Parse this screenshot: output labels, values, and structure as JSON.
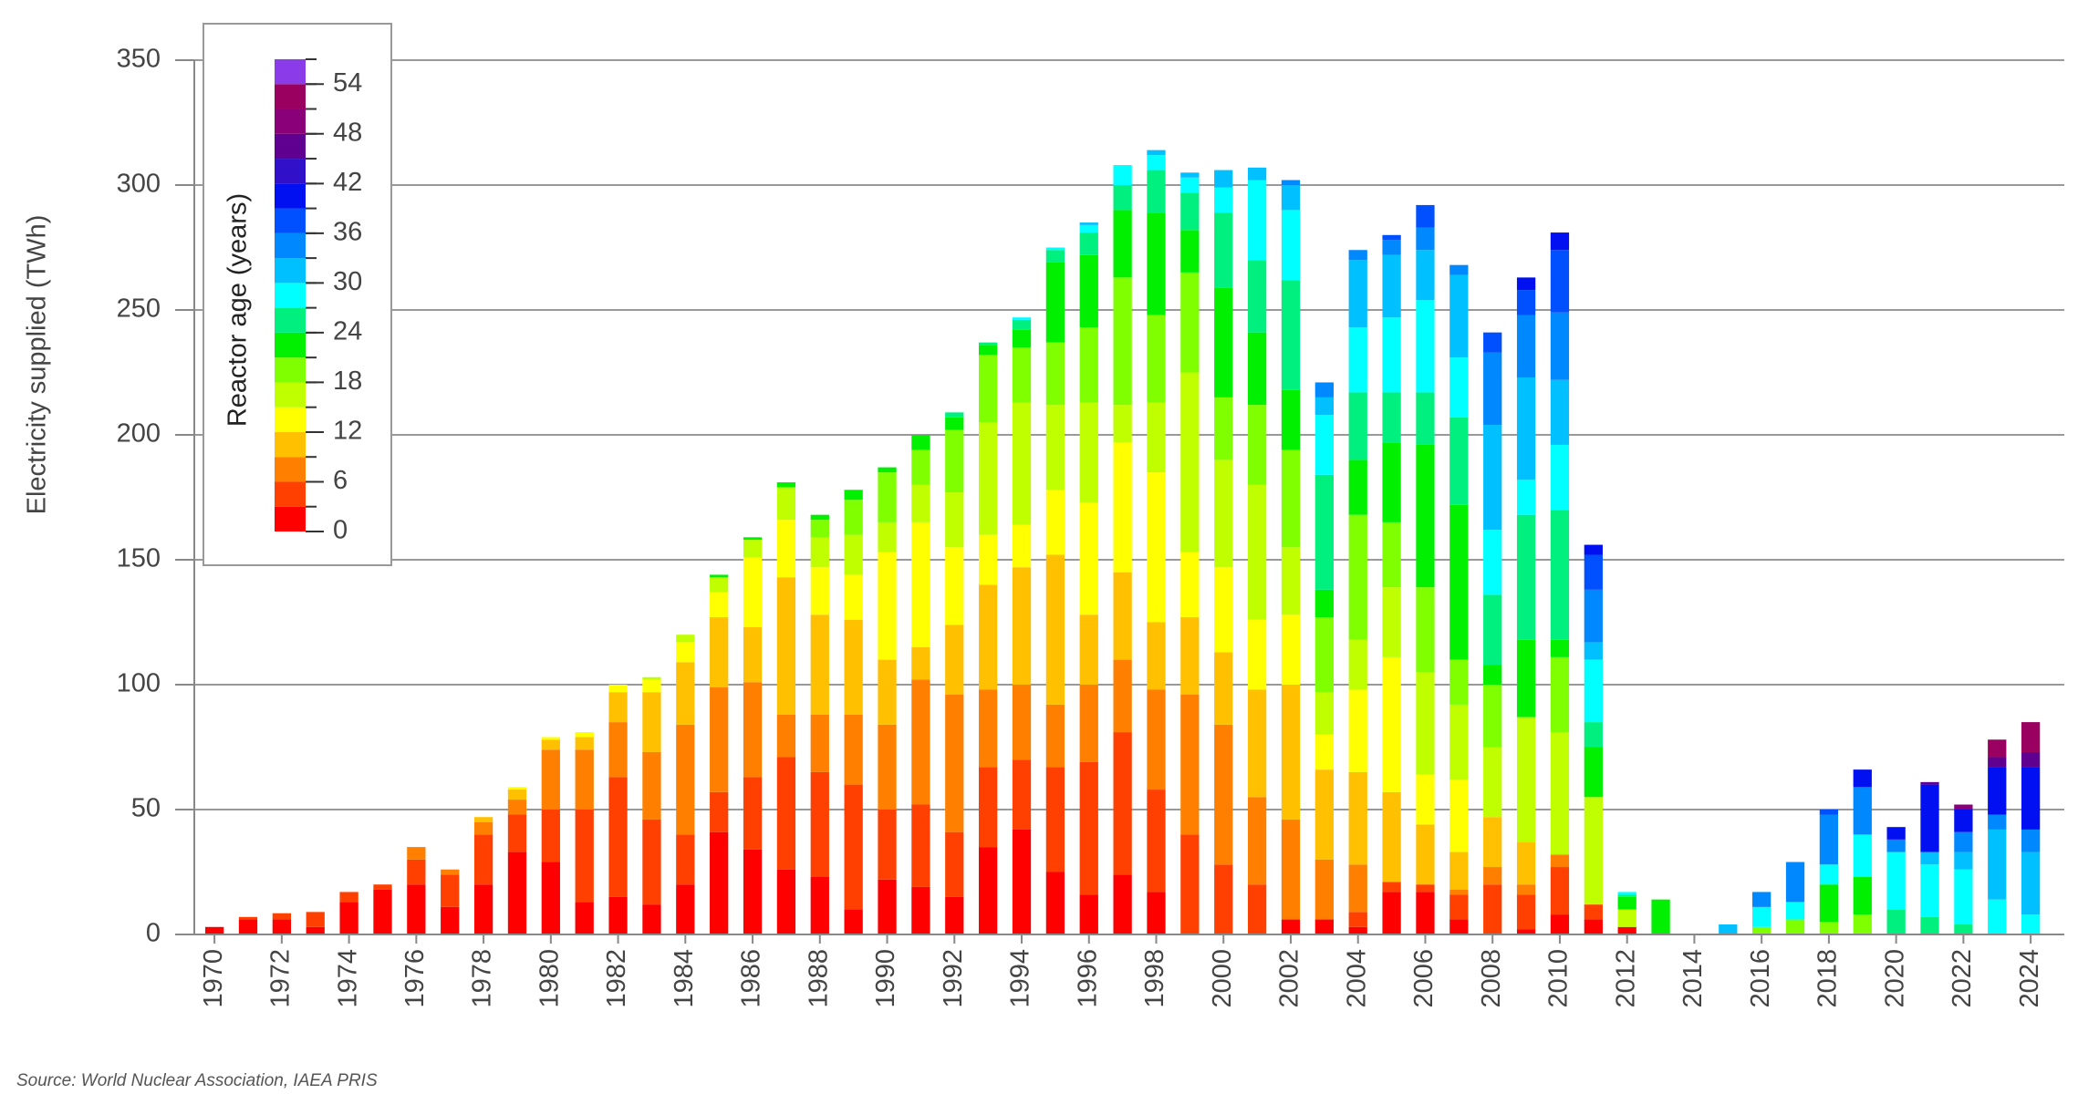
{
  "chart_data": {
    "type": "stacked-bar",
    "y_label": "Electricity supplied (TWh)",
    "source": "Source: World Nuclear Association, IAEA PRIS",
    "x": [
      1970,
      1971,
      1972,
      1973,
      1974,
      1975,
      1976,
      1977,
      1978,
      1979,
      1980,
      1981,
      1982,
      1983,
      1984,
      1985,
      1986,
      1987,
      1988,
      1989,
      1990,
      1991,
      1992,
      1993,
      1994,
      1995,
      1996,
      1997,
      1998,
      1999,
      2000,
      2001,
      2002,
      2003,
      2004,
      2005,
      2006,
      2007,
      2008,
      2009,
      2010,
      2011,
      2012,
      2013,
      2014,
      2015,
      2016,
      2017,
      2018,
      2019,
      2020,
      2021,
      2022,
      2023,
      2024
    ],
    "xlim": [
      1969.4,
      2025
    ],
    "xticks": [
      1970,
      1972,
      1974,
      1976,
      1978,
      1980,
      1982,
      1984,
      1986,
      1988,
      1990,
      1992,
      1994,
      1996,
      1998,
      2000,
      2002,
      2004,
      2006,
      2008,
      2010,
      2012,
      2014,
      2016,
      2018,
      2020,
      2022,
      2024
    ],
    "ylim": [
      0,
      350
    ],
    "yticks": [
      0,
      50,
      100,
      150,
      200,
      250,
      300,
      350
    ],
    "grid": true,
    "colorbar": {
      "label": "Reactor age (years)",
      "lim": [
        0,
        57
      ],
      "ticks": [
        0,
        6,
        12,
        18,
        24,
        30,
        36,
        42,
        48,
        54
      ]
    },
    "series": [
      {
        "color": "#ff0000",
        "values": [
          3,
          6,
          6,
          3,
          13,
          18,
          20,
          11,
          20,
          33,
          29,
          13,
          15,
          12,
          20,
          41,
          34,
          26,
          23,
          10,
          22,
          19,
          15,
          35,
          42,
          25,
          16,
          24,
          17,
          0,
          0,
          0,
          6,
          6,
          3,
          17,
          17,
          6,
          0,
          2,
          8,
          6,
          3,
          0,
          0,
          0,
          0,
          0,
          0,
          0,
          0,
          0,
          0,
          0,
          0
        ]
      },
      {
        "color": "#ff4000",
        "values": [
          0,
          1,
          2.5,
          6,
          4,
          2,
          10,
          13,
          20,
          15,
          21,
          37,
          48,
          34,
          20,
          16,
          29,
          45,
          42,
          50,
          28,
          33,
          26,
          32,
          28,
          42,
          53,
          57,
          41,
          40,
          28,
          20,
          0,
          0,
          6,
          4,
          3,
          10,
          20,
          14,
          19,
          6,
          0,
          0,
          0,
          0,
          0,
          0,
          0,
          0,
          0,
          0,
          0,
          0,
          0
        ]
      },
      {
        "color": "#ff8000",
        "values": [
          0,
          0,
          0,
          0,
          0,
          0,
          5,
          2,
          5,
          6,
          24,
          24,
          22,
          27,
          44,
          42,
          38,
          17,
          23,
          28,
          34,
          50,
          55,
          31,
          30,
          25,
          31,
          29,
          40,
          56,
          56,
          35,
          40,
          24,
          19,
          0,
          0,
          2,
          7,
          4,
          5,
          0,
          0,
          0,
          0,
          0,
          0,
          0,
          0,
          0,
          0,
          0,
          0,
          0,
          0
        ]
      },
      {
        "color": "#ffc000",
        "values": [
          0,
          0,
          0,
          0,
          0,
          0,
          0,
          0,
          2,
          4,
          4,
          5,
          12,
          24,
          25,
          28,
          22,
          55,
          40,
          38,
          26,
          13,
          28,
          42,
          47,
          60,
          28,
          35,
          27,
          31,
          29,
          43,
          54,
          36,
          37,
          36,
          24,
          15,
          20,
          17,
          0,
          0,
          0,
          0,
          0,
          0,
          0,
          0,
          0,
          0,
          0,
          0,
          0,
          0,
          0
        ]
      },
      {
        "color": "#ffff00",
        "values": [
          0,
          0,
          0,
          0,
          0,
          0,
          0,
          0,
          0,
          1,
          1,
          2,
          3,
          5,
          8,
          10,
          28,
          23,
          19,
          18,
          43,
          50,
          31,
          20,
          17,
          26,
          45,
          52,
          60,
          26,
          34,
          28,
          28,
          14,
          33,
          54,
          20,
          29,
          0,
          0,
          0,
          0,
          0,
          0,
          0,
          0,
          0,
          0,
          0,
          0,
          0,
          0,
          0,
          0,
          0
        ]
      },
      {
        "color": "#c0ff00",
        "values": [
          0,
          0,
          0,
          0,
          0,
          0,
          0,
          0,
          0,
          0,
          0,
          0,
          0,
          1,
          3,
          6,
          7,
          13,
          12,
          16,
          12,
          15,
          22,
          45,
          49,
          34,
          40,
          15,
          28,
          72,
          43,
          54,
          27,
          17,
          20,
          28,
          41,
          30,
          28,
          50,
          49,
          43,
          7,
          0,
          0,
          0,
          0,
          0,
          0,
          0,
          0,
          0,
          0,
          0,
          0
        ]
      },
      {
        "color": "#80ff00",
        "values": [
          0,
          0,
          0,
          0,
          0,
          0,
          0,
          0,
          0,
          0,
          0,
          0,
          0,
          0,
          0,
          0,
          0,
          0,
          7,
          14,
          20,
          14,
          25,
          27,
          22,
          25,
          30,
          51,
          35,
          40,
          25,
          32,
          39,
          30,
          50,
          26,
          34,
          18,
          25,
          0,
          30,
          0,
          0,
          0,
          0,
          0,
          3,
          6,
          5,
          8,
          0,
          0,
          0,
          0,
          0
        ]
      },
      {
        "color": "#00f000",
        "values": [
          0,
          0,
          0,
          0,
          0,
          0,
          0,
          0,
          0,
          0,
          0,
          0,
          0,
          0,
          0,
          1,
          1,
          2,
          2,
          4,
          2,
          6,
          5,
          4,
          7,
          32,
          29,
          27,
          41,
          17,
          44,
          29,
          24,
          11,
          22,
          32,
          57,
          62,
          8,
          31,
          7,
          20,
          5,
          14,
          0,
          0,
          0,
          0,
          15,
          15,
          0,
          0,
          0,
          0,
          0
        ]
      },
      {
        "color": "#00f080",
        "values": [
          0,
          0,
          0,
          0,
          0,
          0,
          0,
          0,
          0,
          0,
          0,
          0,
          0,
          0,
          0,
          0,
          0,
          0,
          0,
          0,
          0,
          0,
          2,
          1,
          4,
          5,
          9,
          10,
          17,
          15,
          30,
          29,
          44,
          46,
          27,
          20,
          21,
          35,
          28,
          50,
          52,
          10,
          1,
          0,
          0,
          0,
          0,
          0,
          0,
          0,
          10,
          7,
          4,
          0,
          0
        ]
      },
      {
        "color": "#00ffff",
        "values": [
          0,
          0,
          0,
          0,
          0,
          0,
          0,
          0,
          0,
          0,
          0,
          0,
          0,
          0,
          0,
          0,
          0,
          0,
          0,
          0,
          0,
          0,
          0,
          0,
          1,
          1,
          3,
          8,
          6,
          6,
          10,
          32,
          28,
          24,
          26,
          30,
          37,
          24,
          26,
          14,
          26,
          25,
          1,
          0,
          0,
          0,
          8,
          7,
          8,
          17,
          23,
          21,
          22,
          14,
          8
        ]
      },
      {
        "color": "#00c0ff",
        "values": [
          0,
          0,
          0,
          0,
          0,
          0,
          0,
          0,
          0,
          0,
          0,
          0,
          0,
          0,
          0,
          0,
          0,
          0,
          0,
          0,
          0,
          0,
          0,
          0,
          0,
          0,
          1,
          0,
          2,
          2,
          7,
          5,
          10,
          7,
          27,
          25,
          20,
          33,
          42,
          41,
          26,
          7,
          0,
          0,
          0,
          4,
          0,
          0,
          0,
          0,
          0,
          5,
          7,
          28,
          25
        ]
      },
      {
        "color": "#0088ff",
        "values": [
          0,
          0,
          0,
          0,
          0,
          0,
          0,
          0,
          0,
          0,
          0,
          0,
          0,
          0,
          0,
          0,
          0,
          0,
          0,
          0,
          0,
          0,
          0,
          0,
          0,
          0,
          0,
          0,
          0,
          0,
          0,
          0,
          2,
          6,
          4,
          6,
          9,
          4,
          29,
          25,
          27,
          21,
          0,
          0,
          0,
          0,
          6,
          16,
          20,
          19,
          5,
          0,
          8,
          6,
          9
        ]
      },
      {
        "color": "#0050ff",
        "values": [
          0,
          0,
          0,
          0,
          0,
          0,
          0,
          0,
          0,
          0,
          0,
          0,
          0,
          0,
          0,
          0,
          0,
          0,
          0,
          0,
          0,
          0,
          0,
          0,
          0,
          0,
          0,
          0,
          0,
          0,
          0,
          0,
          0,
          0,
          0,
          2,
          9,
          0,
          8,
          10,
          25,
          14,
          0,
          0,
          0,
          0,
          0,
          0,
          2,
          0,
          0,
          0,
          0,
          0,
          0
        ]
      },
      {
        "color": "#0010f0",
        "values": [
          0,
          0,
          0,
          0,
          0,
          0,
          0,
          0,
          0,
          0,
          0,
          0,
          0,
          0,
          0,
          0,
          0,
          0,
          0,
          0,
          0,
          0,
          0,
          0,
          0,
          0,
          0,
          0,
          0,
          0,
          0,
          0,
          0,
          0,
          0,
          0,
          0,
          0,
          0,
          5,
          7,
          4,
          0,
          0,
          0,
          0,
          0,
          0,
          0,
          7,
          5,
          27,
          9,
          19,
          25
        ]
      },
      {
        "color": "#3010c8",
        "values": [
          0,
          0,
          0,
          0,
          0,
          0,
          0,
          0,
          0,
          0,
          0,
          0,
          0,
          0,
          0,
          0,
          0,
          0,
          0,
          0,
          0,
          0,
          0,
          0,
          0,
          0,
          0,
          0,
          0,
          0,
          0,
          0,
          0,
          0,
          0,
          0,
          0,
          0,
          0,
          0,
          0,
          0,
          0,
          0,
          0,
          0,
          0,
          0,
          0,
          0,
          0,
          0,
          0,
          0,
          0
        ]
      },
      {
        "color": "#600090",
        "values": [
          0,
          0,
          0,
          0,
          0,
          0,
          0,
          0,
          0,
          0,
          0,
          0,
          0,
          0,
          0,
          0,
          0,
          0,
          0,
          0,
          0,
          0,
          0,
          0,
          0,
          0,
          0,
          0,
          0,
          0,
          0,
          0,
          0,
          0,
          0,
          0,
          0,
          0,
          0,
          0,
          0,
          0,
          0,
          0,
          0,
          0,
          0,
          0,
          0,
          0,
          0,
          1,
          0,
          4,
          6
        ]
      },
      {
        "color": "#8a0078",
        "values": [
          0,
          0,
          0,
          0,
          0,
          0,
          0,
          0,
          0,
          0,
          0,
          0,
          0,
          0,
          0,
          0,
          0,
          0,
          0,
          0,
          0,
          0,
          0,
          0,
          0,
          0,
          0,
          0,
          0,
          0,
          0,
          0,
          0,
          0,
          0,
          0,
          0,
          0,
          0,
          0,
          0,
          0,
          0,
          0,
          0,
          0,
          0,
          0,
          0,
          0,
          0,
          0,
          2,
          0,
          0
        ]
      },
      {
        "color": "#9a0060",
        "values": [
          0,
          0,
          0,
          0,
          0,
          0,
          0,
          0,
          0,
          0,
          0,
          0,
          0,
          0,
          0,
          0,
          0,
          0,
          0,
          0,
          0,
          0,
          0,
          0,
          0,
          0,
          0,
          0,
          0,
          0,
          0,
          0,
          0,
          0,
          0,
          0,
          0,
          0,
          0,
          0,
          0,
          0,
          0,
          0,
          0,
          0,
          0,
          0,
          0,
          0,
          0,
          0,
          0,
          7,
          12
        ]
      },
      {
        "color": "#8a3ce8",
        "values": [
          0,
          0,
          0,
          0,
          0,
          0,
          0,
          0,
          0,
          0,
          0,
          0,
          0,
          0,
          0,
          0,
          0,
          0,
          0,
          0,
          0,
          0,
          0,
          0,
          0,
          0,
          0,
          0,
          0,
          0,
          0,
          0,
          0,
          0,
          0,
          0,
          0,
          0,
          0,
          0,
          0,
          0,
          0,
          0,
          0,
          0,
          0,
          0,
          0,
          0,
          0,
          0,
          0,
          0,
          0
        ]
      }
    ]
  }
}
